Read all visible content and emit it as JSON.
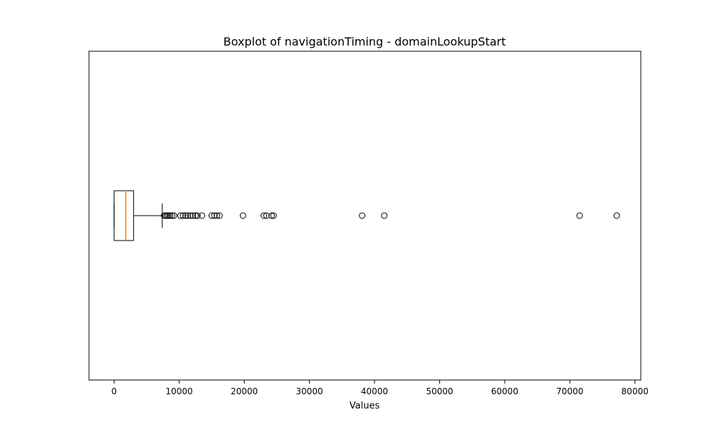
{
  "chart_data": {
    "type": "boxplot",
    "orientation": "horizontal",
    "title": "Boxplot of navigationTiming - domainLookupStart",
    "xlabel": "Values",
    "ylabel": "",
    "xlim": [
      -3850,
      80900
    ],
    "xticks": [
      0,
      10000,
      20000,
      30000,
      40000,
      50000,
      60000,
      70000,
      80000
    ],
    "xtick_labels": [
      "0",
      "10000",
      "20000",
      "30000",
      "40000",
      "50000",
      "60000",
      "70000",
      "80000"
    ],
    "grid": false,
    "box": {
      "whisker_low": 0,
      "q1": 0,
      "median": 1800,
      "q3": 3000,
      "whisker_high": 7400
    },
    "outliers": [
      7700,
      7900,
      8100,
      8300,
      8600,
      8900,
      9200,
      10200,
      10600,
      11000,
      11300,
      11700,
      12100,
      12500,
      12800,
      13500,
      15000,
      15400,
      15800,
      16200,
      19800,
      23000,
      23400,
      24200,
      24500,
      38100,
      41500,
      71500,
      77200
    ],
    "colors": {
      "box": "#000000",
      "median": "#ff7f0e",
      "outlier": "#000000"
    }
  }
}
